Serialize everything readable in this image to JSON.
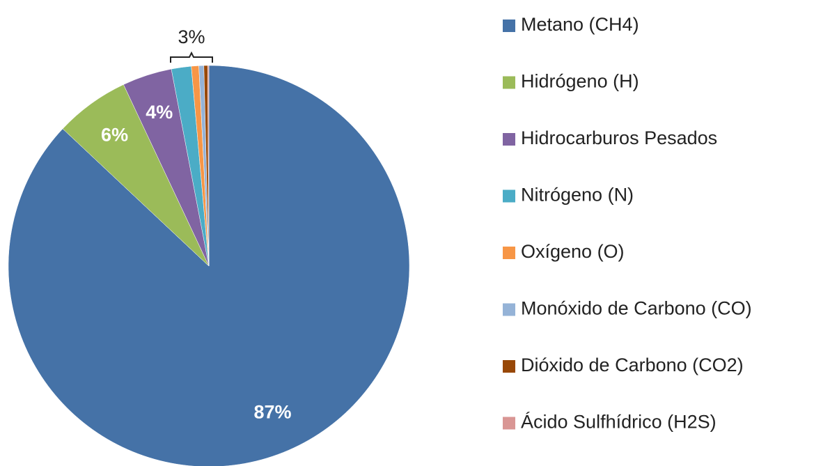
{
  "chart_data": {
    "type": "pie",
    "categories": [
      "Metano (CH4)",
      "Hidrógeno (H)",
      "Hidrocarburos Pesados",
      "Nitrógeno (N)",
      "Oxígeno (O)",
      "Monóxido de Carbono (CO)",
      "Dióxido de Carbono (CO2)",
      "Ácido Sulfhídrico (H2S)"
    ],
    "values": [
      87,
      6,
      4,
      1.6,
      0.6,
      0.4,
      0.3,
      0.1
    ],
    "value_labels": [
      "87%",
      "6%",
      "4%",
      null,
      null,
      null,
      null,
      null
    ],
    "colors": [
      "#4572A7",
      "#9BBB59",
      "#8064A2",
      "#4BACC6",
      "#F79646",
      "#95B3D7",
      "#984807",
      "#D99694"
    ],
    "annotation": "3%",
    "legend": "right"
  }
}
